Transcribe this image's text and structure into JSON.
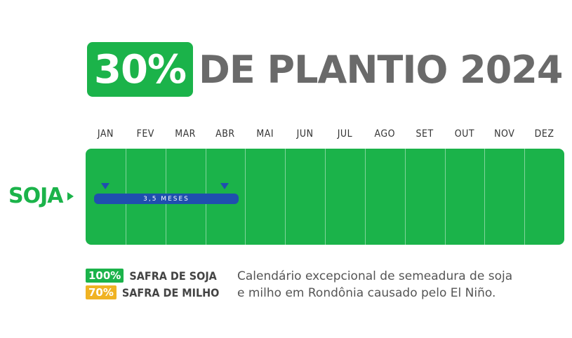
{
  "header": {
    "percent": "30%",
    "title": "DE PLANTIO 2024",
    "percent_bg_color": "#1bb34a",
    "title_color": "#6a6a6a"
  },
  "calendar": {
    "months": [
      "JAN",
      "FEV",
      "MAR",
      "ABR",
      "MAI",
      "JUN",
      "JUL",
      "AGO",
      "SET",
      "OUT",
      "NOV",
      "DEZ"
    ],
    "background_color": "#1bb34a",
    "rows": [
      {
        "crop": "SOJA",
        "bar_label": "3,5 MESES",
        "bar_color": "#1f4faf",
        "start_month_index": 0.2,
        "end_month_index": 3.7
      }
    ]
  },
  "legend": {
    "items": [
      {
        "percent": "100%",
        "name": "SAFRA DE SOJA",
        "color": "#1bb34a"
      },
      {
        "percent": "70%",
        "name": "SAFRA DE MILHO",
        "color": "#f0b323"
      }
    ]
  },
  "caption": {
    "line1": "Calendário excepcional de semeadura de soja",
    "line2": "e milho em Rondônia causado pelo El Niño."
  }
}
